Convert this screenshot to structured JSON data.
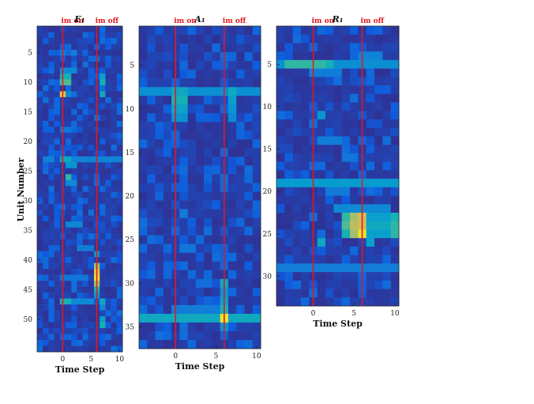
{
  "chart_data": {
    "type": "heatmap",
    "ylabel": "Unit Number",
    "panels": [
      {
        "title": "E₁",
        "xlabel": "Time Step",
        "xlim": [
          -4,
          10
        ],
        "x_ticks": [
          0,
          5,
          10
        ],
        "units": 55,
        "y_ticks": [
          5,
          10,
          15,
          20,
          25,
          30,
          35,
          40,
          45,
          50
        ],
        "markers": [
          {
            "label": "im on",
            "x": 0
          },
          {
            "label": "im off",
            "x": 6
          }
        ],
        "hot": [
          {
            "unit": 9,
            "t": [
              0,
              1
            ],
            "v": 0.5
          },
          {
            "unit": 10,
            "t": [
              0,
              1
            ],
            "v": 0.6
          },
          {
            "unit": 10,
            "t": [
              7
            ],
            "v": 0.5
          },
          {
            "unit": 9,
            "t": [
              7
            ],
            "v": 0.4
          },
          {
            "unit": 12,
            "t": [
              0
            ],
            "v": 0.9
          },
          {
            "unit": 12,
            "t": [
              1
            ],
            "v": 0.3
          },
          {
            "unit": 12,
            "t": [
              7
            ],
            "v": 0.45
          },
          {
            "unit": 8,
            "t": [
              0,
              1,
              2
            ],
            "v": 0.3
          },
          {
            "unit": 23,
            "t": [
              0,
              1
            ],
            "v": 0.45
          },
          {
            "unit": 23,
            "t": [
              -3,
              -2,
              2,
              3,
              4,
              5,
              6,
              7,
              8,
              9,
              10
            ],
            "v": 0.28
          },
          {
            "unit": 24,
            "t": [
              1,
              2
            ],
            "v": 0.35
          },
          {
            "unit": 26,
            "t": [
              1
            ],
            "v": 0.55
          },
          {
            "unit": 27,
            "t": [
              1,
              2
            ],
            "v": 0.3
          },
          {
            "unit": 34,
            "t": [
              1,
              2,
              3
            ],
            "v": 0.3
          },
          {
            "unit": 38,
            "t": [
              3,
              4,
              5
            ],
            "v": 0.25
          },
          {
            "unit": 39,
            "t": [
              6
            ],
            "v": 0.35
          },
          {
            "unit": 41,
            "t": [
              6
            ],
            "v": 0.75
          },
          {
            "unit": 42,
            "t": [
              6
            ],
            "v": 0.9
          },
          {
            "unit": 43,
            "t": [
              6
            ],
            "v": 0.95
          },
          {
            "unit": 44,
            "t": [
              6
            ],
            "v": 0.75
          },
          {
            "unit": 45,
            "t": [
              6
            ],
            "v": 0.5
          },
          {
            "unit": 46,
            "t": [
              6
            ],
            "v": 0.35
          },
          {
            "unit": 43,
            "t": [
              0,
              1,
              2,
              3,
              4
            ],
            "v": 0.22
          },
          {
            "unit": 47,
            "t": [
              0,
              1
            ],
            "v": 0.5
          },
          {
            "unit": 47,
            "t": [
              2,
              3,
              4,
              5
            ],
            "v": 0.3
          },
          {
            "unit": 47,
            "t": [
              7
            ],
            "v": 0.45
          },
          {
            "unit": 48,
            "t": [
              7
            ],
            "v": 0.3
          },
          {
            "unit": 50,
            "t": [
              7
            ],
            "v": 0.4
          },
          {
            "unit": 51,
            "t": [
              7
            ],
            "v": 0.5
          },
          {
            "unit": 5,
            "t": [
              0,
              2
            ],
            "v": 0.25
          },
          {
            "unit": 18,
            "t": [
              0,
              1
            ],
            "v": 0.22
          }
        ]
      },
      {
        "title": "A₁",
        "xlabel": "Time Step",
        "xlim": [
          -4,
          10
        ],
        "x_ticks": [
          0,
          5,
          10
        ],
        "units": 37,
        "y_ticks": [
          5,
          10,
          15,
          20,
          25,
          30,
          35
        ],
        "markers": [
          {
            "label": "im on",
            "x": 0
          },
          {
            "label": "im off",
            "x": 6
          }
        ],
        "hot": [
          {
            "unit": 8,
            "t": [
              -4,
              -3,
              -2,
              -1,
              0,
              1,
              2,
              3,
              4,
              5,
              6,
              7,
              8,
              9,
              10
            ],
            "v": 0.32
          },
          {
            "unit": 8,
            "t": [
              0,
              1
            ],
            "v": 0.45
          },
          {
            "unit": 8,
            "t": [
              7
            ],
            "v": 0.45
          },
          {
            "unit": 9,
            "t": [
              0,
              1
            ],
            "v": 0.5
          },
          {
            "unit": 9,
            "t": [
              7
            ],
            "v": 0.4
          },
          {
            "unit": 10,
            "t": [
              0,
              1
            ],
            "v": 0.42
          },
          {
            "unit": 10,
            "t": [
              7
            ],
            "v": 0.35
          },
          {
            "unit": 11,
            "t": [
              0,
              1
            ],
            "v": 0.35
          },
          {
            "unit": 11,
            "t": [
              7
            ],
            "v": 0.3
          },
          {
            "unit": 30,
            "t": [
              6
            ],
            "v": 0.45
          },
          {
            "unit": 31,
            "t": [
              6
            ],
            "v": 0.35
          },
          {
            "unit": 32,
            "t": [
              6
            ],
            "v": 0.4
          },
          {
            "unit": 33,
            "t": [
              6
            ],
            "v": 0.5
          },
          {
            "unit": 34,
            "t": [
              -4,
              -3,
              -2,
              -1,
              0,
              1,
              2,
              3,
              4,
              5,
              7,
              8,
              9,
              10
            ],
            "v": 0.45
          },
          {
            "unit": 34,
            "t": [
              6
            ],
            "v": 0.95
          },
          {
            "unit": 33,
            "t": [
              0,
              1,
              2,
              3,
              4,
              5
            ],
            "v": 0.25
          },
          {
            "unit": 35,
            "t": [
              6
            ],
            "v": 0.35
          },
          {
            "unit": 22,
            "t": [
              1
            ],
            "v": 0.25
          },
          {
            "unit": 26,
            "t": [
              1,
              2
            ],
            "v": 0.22
          }
        ]
      },
      {
        "title": "R₁",
        "xlabel": "Time Step",
        "xlim": [
          -4,
          10
        ],
        "x_ticks": [
          0,
          5,
          10
        ],
        "units": 33,
        "y_ticks": [
          5,
          10,
          15,
          20,
          25,
          30
        ],
        "markers": [
          {
            "label": "im on",
            "x": 0
          },
          {
            "label": "im off",
            "x": 6
          }
        ],
        "hot": [
          {
            "unit": 5,
            "t": [
              -4,
              -3,
              -2,
              -1,
              0,
              1,
              2,
              3,
              4,
              5,
              6,
              7,
              8,
              9,
              10
            ],
            "v": 0.32
          },
          {
            "unit": 5,
            "t": [
              -3,
              -2,
              -1,
              0,
              1
            ],
            "v": 0.55
          },
          {
            "unit": 5,
            "t": [
              2
            ],
            "v": 0.5
          },
          {
            "unit": 4,
            "t": [
              6,
              7,
              8
            ],
            "v": 0.28
          },
          {
            "unit": 6,
            "t": [
              0,
              1,
              2,
              3
            ],
            "v": 0.25
          },
          {
            "unit": 19,
            "t": [
              -4,
              -3,
              -2,
              -1,
              0,
              1,
              2,
              3,
              4,
              5,
              6,
              7,
              8,
              9,
              10
            ],
            "v": 0.38
          },
          {
            "unit": 22,
            "t": [
              3,
              4,
              5,
              6,
              7,
              8,
              9
            ],
            "v": 0.3
          },
          {
            "unit": 23,
            "t": [
              4
            ],
            "v": 0.55
          },
          {
            "unit": 23,
            "t": [
              5
            ],
            "v": 0.75
          },
          {
            "unit": 23,
            "t": [
              6
            ],
            "v": 0.85
          },
          {
            "unit": 23,
            "t": [
              7,
              8,
              9
            ],
            "v": 0.4
          },
          {
            "unit": 23,
            "t": [
              10
            ],
            "v": 0.5
          },
          {
            "unit": 24,
            "t": [
              4
            ],
            "v": 0.6
          },
          {
            "unit": 24,
            "t": [
              5
            ],
            "v": 0.8
          },
          {
            "unit": 24,
            "t": [
              6
            ],
            "v": 0.85
          },
          {
            "unit": 24,
            "t": [
              7,
              8,
              9
            ],
            "v": 0.45
          },
          {
            "unit": 24,
            "t": [
              10
            ],
            "v": 0.55
          },
          {
            "unit": 25,
            "t": [
              4
            ],
            "v": 0.5
          },
          {
            "unit": 25,
            "t": [
              5
            ],
            "v": 0.75
          },
          {
            "unit": 25,
            "t": [
              6
            ],
            "v": 0.95
          },
          {
            "unit": 25,
            "t": [
              7,
              8,
              9
            ],
            "v": 0.4
          },
          {
            "unit": 25,
            "t": [
              10
            ],
            "v": 0.55
          },
          {
            "unit": 26,
            "t": [
              1
            ],
            "v": 0.45
          },
          {
            "unit": 26,
            "t": [
              7
            ],
            "v": 0.4
          },
          {
            "unit": 29,
            "t": [
              -4,
              -3,
              -2,
              -1,
              0,
              1,
              2,
              3,
              4,
              5,
              6,
              7,
              8,
              9,
              10
            ],
            "v": 0.25
          },
          {
            "unit": 11,
            "t": [
              1
            ],
            "v": 0.35
          },
          {
            "unit": 14,
            "t": [
              1,
              2,
              3
            ],
            "v": 0.25
          },
          {
            "unit": 16,
            "t": [
              4,
              5
            ],
            "v": 0.22
          },
          {
            "unit": 20,
            "t": [
              2,
              3,
              4
            ],
            "v": 0.24
          }
        ]
      }
    ]
  }
}
